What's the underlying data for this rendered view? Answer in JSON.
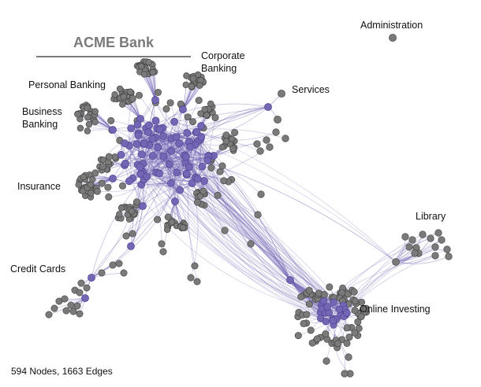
{
  "title": "ACME Bank",
  "stats": "594 Nodes, 1663 Edges",
  "colors": {
    "node": "#7a7a7a",
    "nodeStroke": "#3c3c3c",
    "hub": "#7465b5",
    "hubStroke": "#4a3f8a",
    "edge": "#7466b4",
    "title": "#7a7a7a",
    "background": "#ffffff"
  },
  "clusters": [
    {
      "id": "administration",
      "label": "Administration"
    },
    {
      "id": "corporate-banking",
      "label": "Corporate\nBanking"
    },
    {
      "id": "personal-banking",
      "label": "Personal Banking"
    },
    {
      "id": "services",
      "label": "Services"
    },
    {
      "id": "business-banking",
      "label": "Business\nBanking"
    },
    {
      "id": "insurance",
      "label": "Insurance"
    },
    {
      "id": "library",
      "label": "Library"
    },
    {
      "id": "credit-cards",
      "label": "Credit Cards"
    },
    {
      "id": "online-investing",
      "label": "Online Investing"
    }
  ]
}
